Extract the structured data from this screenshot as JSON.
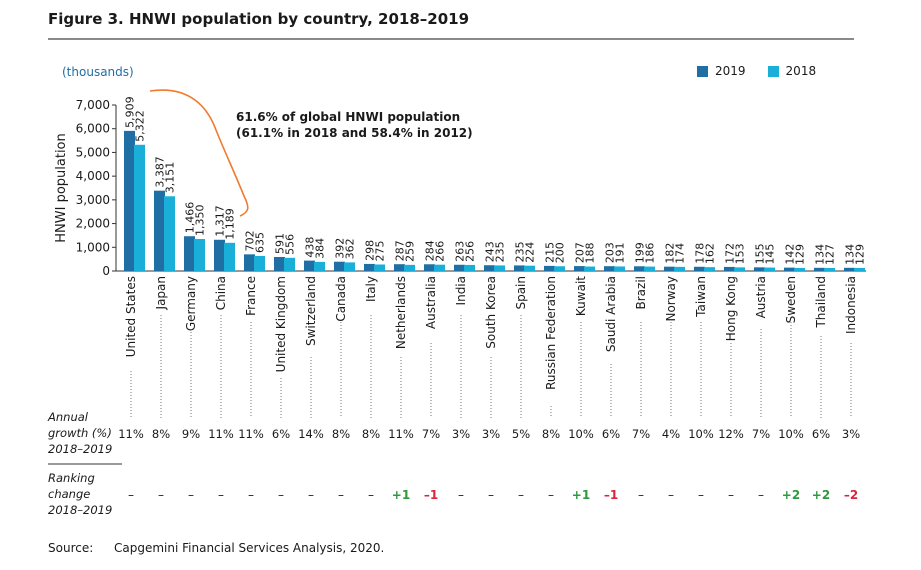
{
  "header": {
    "title": "Figure 3. HNWI population by country, 2018–2019",
    "units": "(thousands)"
  },
  "annotation": {
    "line1": "61.6% of global HNWI population",
    "line2": "(61.1% in 2018 and 58.4% in 2012)"
  },
  "rows": {
    "growth_label": [
      "Annual",
      "growth (%)",
      "2018–2019"
    ],
    "ranking_label": [
      "Ranking",
      "change",
      "2018–2019"
    ]
  },
  "source": {
    "label": "Source:",
    "text": "Capgemini Financial Services Analysis, 2020."
  },
  "colors": {
    "series_2019": "#1f6fa4",
    "series_2018": "#19afd8",
    "annotation_brace": "#f07a2d",
    "rank_up": "#2e9a3c",
    "rank_down": "#d7263d",
    "units_text": "#1f6fa4"
  },
  "chart_data": {
    "type": "bar",
    "title": "Figure 3. HNWI population by country, 2018–2019",
    "ylabel": "HNWI population",
    "xlabel": "",
    "ylim": [
      0,
      7000
    ],
    "yticks": [
      "0",
      "1,000",
      "2,000",
      "3,000",
      "4,000",
      "5,000",
      "6,000",
      "7,000"
    ],
    "legend_position": "top-right",
    "grid": false,
    "categories": [
      "United States",
      "Japan",
      "Germany",
      "China",
      "France",
      "United Kingdom",
      "Switzerland",
      "Canada",
      "Italy",
      "Netherlands",
      "Australia",
      "India",
      "South Korea",
      "Spain",
      "Russian Federation",
      "Kuwait",
      "Saudi Arabia",
      "Brazil",
      "Norway",
      "Taiwan",
      "Hong Kong",
      "Austria",
      "Sweden",
      "Thailand",
      "Indonesia"
    ],
    "series": [
      {
        "name": "2019",
        "values": [
          5909,
          3387,
          1466,
          1317,
          702,
          591,
          438,
          392,
          298,
          287,
          284,
          263,
          243,
          235,
          215,
          207,
          203,
          199,
          182,
          178,
          172,
          155,
          142,
          134,
          134
        ],
        "labels": [
          "5,909",
          "3,387",
          "1,466",
          "1,317",
          "702",
          "591",
          "438",
          "392",
          "298",
          "287",
          "284",
          "263",
          "243",
          "235",
          "215",
          "207",
          "203",
          "199",
          "182",
          "178",
          "172",
          "155",
          "142",
          "134",
          "134"
        ]
      },
      {
        "name": "2018",
        "values": [
          5322,
          3151,
          1350,
          1189,
          635,
          556,
          384,
          362,
          275,
          259,
          266,
          256,
          235,
          224,
          200,
          188,
          191,
          186,
          174,
          162,
          153,
          145,
          129,
          127,
          129
        ],
        "labels": [
          "5,322",
          "3,151",
          "1,350",
          "1,189",
          "635",
          "556",
          "384",
          "362",
          "275",
          "259",
          "266",
          "256",
          "235",
          "224",
          "200",
          "188",
          "191",
          "186",
          "174",
          "162",
          "153",
          "145",
          "129",
          "127",
          "129"
        ]
      }
    ],
    "annual_growth": [
      "11%",
      "8%",
      "9%",
      "11%",
      "11%",
      "6%",
      "14%",
      "8%",
      "8%",
      "11%",
      "7%",
      "3%",
      "3%",
      "5%",
      "8%",
      "10%",
      "6%",
      "7%",
      "4%",
      "10%",
      "12%",
      "7%",
      "10%",
      "6%",
      "3%"
    ],
    "ranking_change": [
      "–",
      "–",
      "–",
      "–",
      "–",
      "–",
      "–",
      "–",
      "–",
      "+1",
      "–1",
      "–",
      "–",
      "–",
      "–",
      "+1",
      "–1",
      "–",
      "–",
      "–",
      "–",
      "–",
      "+2",
      "+2",
      "–2"
    ]
  }
}
